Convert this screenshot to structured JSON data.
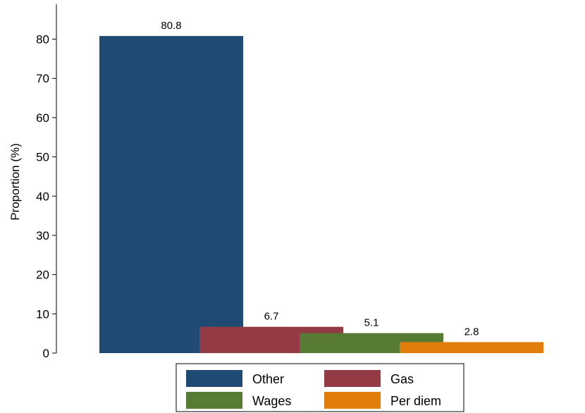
{
  "chart_data": {
    "type": "bar",
    "title": "",
    "xlabel": "",
    "ylabel": "Proportion (%)",
    "ylim": [
      0,
      85
    ],
    "yticks": [
      0,
      10,
      20,
      30,
      40,
      50,
      60,
      70,
      80
    ],
    "grid": false,
    "legend_position": "bottom",
    "series": [
      {
        "name": "Other",
        "value": 80.8,
        "label": "80.8",
        "color": "#1f4a73"
      },
      {
        "name": "Gas",
        "value": 6.7,
        "label": "6.7",
        "color": "#943a45"
      },
      {
        "name": "Wages",
        "value": 5.1,
        "label": "5.1",
        "color": "#577a35"
      },
      {
        "name": "Per diem",
        "value": 2.8,
        "label": "2.8",
        "color": "#e17e0b"
      }
    ]
  }
}
